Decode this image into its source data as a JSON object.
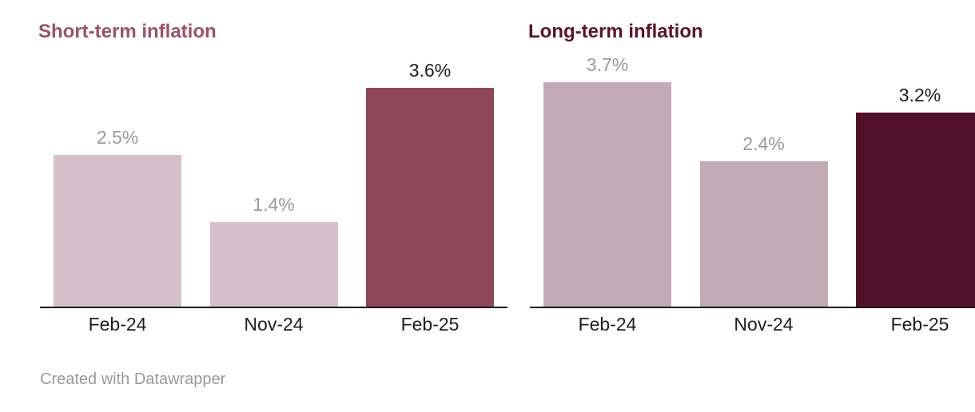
{
  "footer": {
    "credit": "Created with Datawrapper"
  },
  "chart_data": [
    {
      "type": "bar",
      "title": "Short-term inflation",
      "title_color": "#9b516c",
      "categories": [
        "Feb-24",
        "Nov-24",
        "Feb-25"
      ],
      "values": [
        2.5,
        1.4,
        3.6
      ],
      "value_labels": [
        "2.5%",
        "1.4%",
        "3.6%"
      ],
      "bar_colors": [
        "#d6c1ca",
        "#d6c1ca",
        "#8e4758"
      ],
      "value_label_colors": [
        "#9a9a9a",
        "#9a9a9a",
        "#1d1d1d"
      ],
      "xlabel": "",
      "ylabel": "",
      "ylim": [
        0,
        4.8
      ],
      "grid": false,
      "legend": "none",
      "axis_line_color": "#181818"
    },
    {
      "type": "bar",
      "title": "Long-term inflation",
      "title_color": "#5a1330",
      "categories": [
        "Feb-24",
        "Nov-24",
        "Feb-25"
      ],
      "values": [
        3.7,
        2.4,
        3.2
      ],
      "value_labels": [
        "3.7%",
        "2.4%",
        "3.2%"
      ],
      "bar_colors": [
        "#c2abb5",
        "#c2abb5",
        "#511129"
      ],
      "value_label_colors": [
        "#9a9a9a",
        "#9a9a9a",
        "#1d1d1d"
      ],
      "xlabel": "",
      "ylabel": "",
      "ylim": [
        0,
        4.8
      ],
      "grid": false,
      "legend": "none",
      "axis_line_color": "#181818"
    }
  ]
}
